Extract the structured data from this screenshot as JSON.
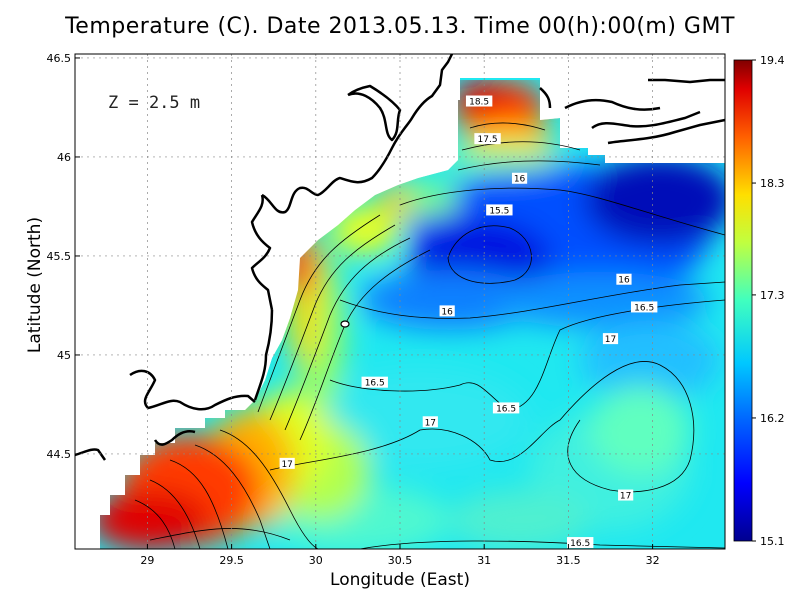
{
  "title": "Temperature (C). Date 2013.05.13. Time 00(h):00(m) GMT",
  "depth_label": "Z = 2.5 m",
  "chart_data": {
    "type": "heatmap",
    "title": "Temperature (C). Date 2013.05.13. Time 00(h):00(m) GMT",
    "xlabel": "Longitude (East)",
    "ylabel": "Latitude (North)",
    "xlim": [
      28.57,
      32.43
    ],
    "ylim": [
      44.02,
      46.52
    ],
    "x_ticks": [
      "29",
      "29.5",
      "30",
      "30.5",
      "31",
      "31.5",
      "32"
    ],
    "x_tick_values": [
      29,
      29.5,
      30,
      30.5,
      31,
      31.5,
      32
    ],
    "y_ticks": [
      "44.5",
      "45",
      "45.5",
      "46",
      "46.5"
    ],
    "y_tick_values": [
      44.5,
      45,
      45.5,
      46,
      46.5
    ],
    "grid": true,
    "colorbar": {
      "ticks": [
        "19.4",
        "18.3",
        "17.3",
        "16.2",
        "15.1"
      ],
      "tick_values": [
        19.4,
        18.3,
        17.3,
        16.2,
        15.1
      ],
      "range": [
        15.1,
        19.4
      ],
      "colors": [
        "#00008f",
        "#0000ff",
        "#0080ff",
        "#00ffff",
        "#80ff80",
        "#ffff00",
        "#ff8000",
        "#ff0000",
        "#800000"
      ]
    },
    "contour_labels": [
      {
        "text": "18.5",
        "lon": 30.97,
        "lat": 46.28
      },
      {
        "text": "17.5",
        "lon": 31.02,
        "lat": 46.09
      },
      {
        "text": "16",
        "lon": 31.21,
        "lat": 45.89
      },
      {
        "text": "15.5",
        "lon": 31.09,
        "lat": 45.73
      },
      {
        "text": "16",
        "lon": 31.83,
        "lat": 45.38
      },
      {
        "text": "16.5",
        "lon": 31.95,
        "lat": 45.24
      },
      {
        "text": "16",
        "lon": 30.78,
        "lat": 45.22
      },
      {
        "text": "17",
        "lon": 31.75,
        "lat": 45.08
      },
      {
        "text": "16.5",
        "lon": 30.35,
        "lat": 44.86
      },
      {
        "text": "16.5",
        "lon": 31.13,
        "lat": 44.73
      },
      {
        "text": "17",
        "lon": 30.68,
        "lat": 44.66
      },
      {
        "text": "17",
        "lon": 29.83,
        "lat": 44.45
      },
      {
        "text": "17",
        "lon": 31.84,
        "lat": 44.29
      },
      {
        "text": "16.5",
        "lon": 31.57,
        "lat": 44.05
      }
    ]
  }
}
